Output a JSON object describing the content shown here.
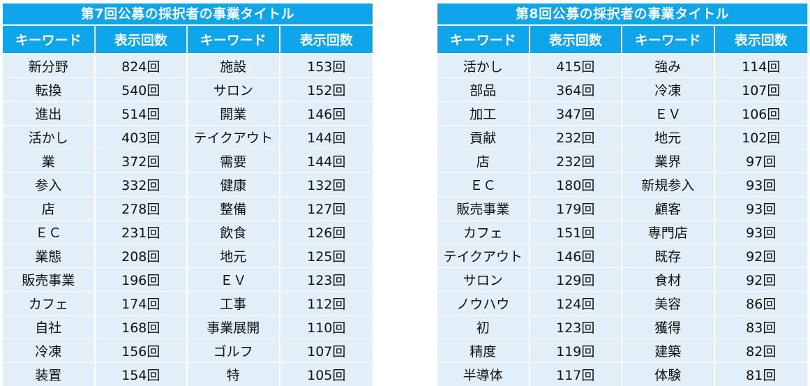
{
  "tables": [
    {
      "title": "第7回公募の採択者の事業タイトル",
      "headers": [
        "キーワード",
        "表示回数",
        "キーワード",
        "表示回数"
      ],
      "rows": [
        [
          "新分野",
          "824回",
          "施設",
          "153回"
        ],
        [
          "転換",
          "540回",
          "サロン",
          "152回"
        ],
        [
          "進出",
          "514回",
          "開業",
          "146回"
        ],
        [
          "活かし",
          "403回",
          "テイクアウト",
          "144回"
        ],
        [
          "業",
          "372回",
          "需要",
          "144回"
        ],
        [
          "参入",
          "332回",
          "健康",
          "132回"
        ],
        [
          "店",
          "278回",
          "整備",
          "127回"
        ],
        [
          "ＥＣ",
          "231回",
          "飲食",
          "126回"
        ],
        [
          "業態",
          "208回",
          "地元",
          "125回"
        ],
        [
          "販売事業",
          "196回",
          "ＥＶ",
          "123回"
        ],
        [
          "カフェ",
          "174回",
          "工事",
          "112回"
        ],
        [
          "自社",
          "168回",
          "事業展開",
          "110回"
        ],
        [
          "冷凍",
          "156回",
          "ゴルフ",
          "107回"
        ],
        [
          "装置",
          "154回",
          "特",
          "105回"
        ]
      ]
    },
    {
      "title": "第8回公募の採択者の事業タイトル",
      "headers": [
        "キーワード",
        "表示回数",
        "キーワード",
        "表示回数"
      ],
      "rows": [
        [
          "活かし",
          "415回",
          "強み",
          "114回"
        ],
        [
          "部品",
          "364回",
          "冷凍",
          "107回"
        ],
        [
          "加工",
          "347回",
          "ＥＶ",
          "106回"
        ],
        [
          "貢献",
          "232回",
          "地元",
          "102回"
        ],
        [
          "店",
          "232回",
          "業界",
          "97回"
        ],
        [
          "ＥＣ",
          "180回",
          "新規参入",
          "93回"
        ],
        [
          "販売事業",
          "179回",
          "顧客",
          "93回"
        ],
        [
          "カフェ",
          "151回",
          "専門店",
          "93回"
        ],
        [
          "テイクアウト",
          "146回",
          "既存",
          "92回"
        ],
        [
          "サロン",
          "129回",
          "食材",
          "92回"
        ],
        [
          "ノウハウ",
          "124回",
          "美容",
          "86回"
        ],
        [
          "初",
          "123回",
          "獲得",
          "83回"
        ],
        [
          "精度",
          "119回",
          "建築",
          "82回"
        ],
        [
          "半導体",
          "117回",
          "体験",
          "81回"
        ]
      ]
    }
  ]
}
